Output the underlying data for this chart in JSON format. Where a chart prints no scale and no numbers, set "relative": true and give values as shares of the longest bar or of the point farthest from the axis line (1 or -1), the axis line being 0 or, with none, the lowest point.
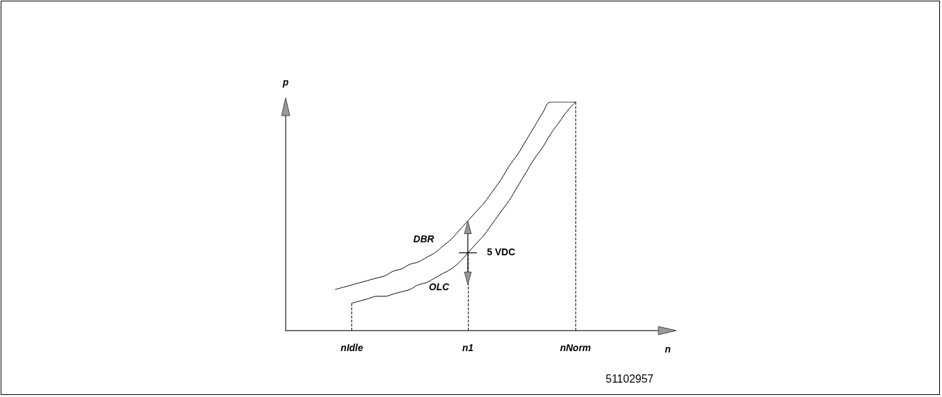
{
  "chart_data": {
    "type": "line",
    "relative": true,
    "xlabel": "n",
    "ylabel": "p",
    "categories": [
      null,
      null,
      null,
      null,
      null,
      null,
      null,
      null,
      "nIdle",
      null,
      null,
      null,
      null,
      null,
      null,
      null,
      null,
      null,
      null,
      null,
      null,
      null,
      "n1",
      null,
      null,
      null,
      null,
      null,
      null,
      null,
      null,
      null,
      null,
      null,
      null,
      "nNorm",
      null,
      null,
      null,
      null,
      null,
      null,
      null,
      null,
      null,
      null,
      null,
      null
    ],
    "series": [
      {
        "name": "DBR",
        "color": "#000000",
        "values": [
          null,
          null,
          null,
          null,
          null,
          null,
          0.18,
          0.19,
          0.2,
          0.21,
          0.22,
          0.23,
          0.24,
          0.26,
          0.27,
          0.29,
          0.3,
          0.32,
          0.34,
          0.37,
          0.4,
          0.44,
          0.48,
          0.52,
          0.56,
          0.61,
          0.66,
          0.72,
          0.77,
          0.83,
          0.89,
          0.95,
          1,
          1,
          1,
          1,
          null,
          null,
          null,
          null,
          null,
          null,
          null,
          null,
          null,
          null,
          null,
          null
        ]
      },
      {
        "name": "OLC",
        "color": "#000000",
        "values": [
          null,
          null,
          null,
          null,
          null,
          null,
          null,
          null,
          0.12,
          0.13,
          0.14,
          0.15,
          0.15,
          0.16,
          0.17,
          0.18,
          0.2,
          0.21,
          0.23,
          0.25,
          0.27,
          0.3,
          0.34,
          0.38,
          0.42,
          0.47,
          0.52,
          0.57,
          0.63,
          0.69,
          0.75,
          0.8,
          0.86,
          0.91,
          0.96,
          1,
          null,
          null,
          null,
          null,
          null,
          null,
          null,
          null,
          null,
          null,
          null,
          null
        ]
      }
    ],
    "ref_lines": [
      {
        "axis": "x",
        "value": "nIdle",
        "line_style": "dashed"
      },
      {
        "axis": "x",
        "value": "n1",
        "line_style": "dashed"
      },
      {
        "axis": "x",
        "value": "nNorm",
        "line_style": "dashed"
      }
    ],
    "annotations": [
      {
        "text": "5 VDC",
        "x": "n1",
        "y": 0.34
      },
      "51102957"
    ],
    "legend": false,
    "marker": "none",
    "line_style": "solid",
    "grid": false,
    "tick_labels": "x"
  }
}
